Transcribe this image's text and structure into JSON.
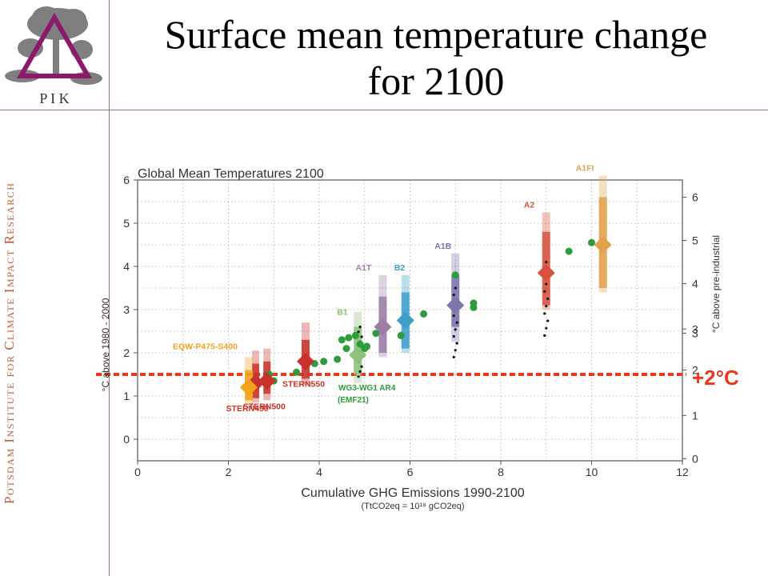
{
  "slide": {
    "title_line1": "Surface mean  temperature change",
    "title_line2": "for 2100",
    "sidebar_text": "Potsdam Institute for Climate Impact Research",
    "logo_text": "P I K"
  },
  "colors": {
    "frame": "#9a6a86",
    "logo": "#8c1a6a",
    "sidebar": "#c05b33",
    "threshold": "#e8391d",
    "points": "#2e9c3a",
    "a1fi": "#e1a24f",
    "a2": "#d6533f",
    "a1b": "#7c76ad",
    "b2": "#3f9fc9",
    "a1t": "#9a7ea5",
    "b1": "#8cc27a",
    "stern": "#c9322b",
    "eqw": "#f2a21b"
  },
  "chart_data": {
    "type": "scatter",
    "title": "Global Mean Temperatures 2100",
    "xlabel": "Cumulative GHG Emissions 1990-2100",
    "xlabel_sub": "(TtCO2eq = 10¹⁸ gCO2eq)",
    "ylabel_left": "°C above 1980 - 2000",
    "ylabel_right": "°C above pre-industrial",
    "xlim": [
      0,
      12
    ],
    "ylim": [
      -0.5,
      6
    ],
    "x_ticks": [
      "0",
      "2",
      "4",
      "6",
      "8",
      "10",
      "12"
    ],
    "y_left_ticks": [
      "0",
      "1",
      "2",
      "3",
      "4",
      "5",
      "6"
    ],
    "y_right_ticks": [
      "0",
      "1",
      "2",
      "3",
      "3",
      "4",
      "5",
      "6"
    ],
    "grid": true,
    "threshold": {
      "label": "+2°C",
      "y": 1.5
    },
    "scenarios": [
      {
        "name": "A1FI",
        "x": 10.25,
        "best": 4.5,
        "likely": [
          3.5,
          5.6
        ],
        "range": [
          3.4,
          6.1
        ]
      },
      {
        "name": "A2",
        "x": 9.0,
        "best": 3.85,
        "likely": [
          3.1,
          4.8
        ],
        "range": [
          3.0,
          5.25
        ]
      },
      {
        "name": "A1B",
        "x": 7.0,
        "best": 3.1,
        "likely": [
          2.6,
          3.8
        ],
        "range": [
          2.25,
          4.3
        ]
      },
      {
        "name": "B2",
        "x": 5.9,
        "best": 2.75,
        "likely": [
          2.1,
          3.4
        ],
        "range": [
          2.0,
          3.8
        ]
      },
      {
        "name": "A1T",
        "x": 5.4,
        "best": 2.6,
        "likely": [
          2.0,
          3.3
        ],
        "range": [
          1.9,
          3.8
        ]
      },
      {
        "name": "B1",
        "x": 4.85,
        "best": 1.95,
        "likely": [
          1.5,
          2.6
        ],
        "range": [
          1.3,
          2.95
        ]
      },
      {
        "name": "STERN550",
        "x": 3.7,
        "best": 1.8,
        "likely": [
          1.4,
          2.3
        ],
        "range": [
          1.25,
          2.7
        ]
      },
      {
        "name": "STERN500",
        "x": 2.85,
        "best": 1.35,
        "likely": [
          1.05,
          1.8
        ],
        "range": [
          0.9,
          2.1
        ]
      },
      {
        "name": "STERN450",
        "x": 2.6,
        "best": 1.3,
        "likely": [
          0.95,
          1.75
        ],
        "range": [
          0.85,
          2.05
        ]
      },
      {
        "name": "EQW-P475-S400",
        "x": 2.45,
        "best": 1.2,
        "likely": [
          0.9,
          1.6
        ],
        "range": [
          0.8,
          1.9
        ]
      }
    ],
    "extra_labels": [
      "WG3-WG1 AR4",
      "(EMF21)"
    ],
    "points": [
      [
        2.9,
        1.5
      ],
      [
        3.0,
        1.35
      ],
      [
        3.5,
        1.55
      ],
      [
        3.9,
        1.75
      ],
      [
        4.1,
        1.8
      ],
      [
        4.4,
        1.85
      ],
      [
        4.5,
        2.3
      ],
      [
        4.6,
        2.1
      ],
      [
        4.65,
        2.35
      ],
      [
        4.8,
        2.4
      ],
      [
        4.9,
        2.2
      ],
      [
        5.0,
        2.1
      ],
      [
        5.05,
        2.15
      ],
      [
        5.25,
        2.45
      ],
      [
        5.8,
        2.4
      ],
      [
        6.3,
        2.9
      ],
      [
        7.0,
        3.8
      ],
      [
        7.4,
        3.05
      ],
      [
        7.4,
        3.15
      ],
      [
        9.5,
        4.35
      ],
      [
        10.0,
        4.55
      ]
    ]
  }
}
